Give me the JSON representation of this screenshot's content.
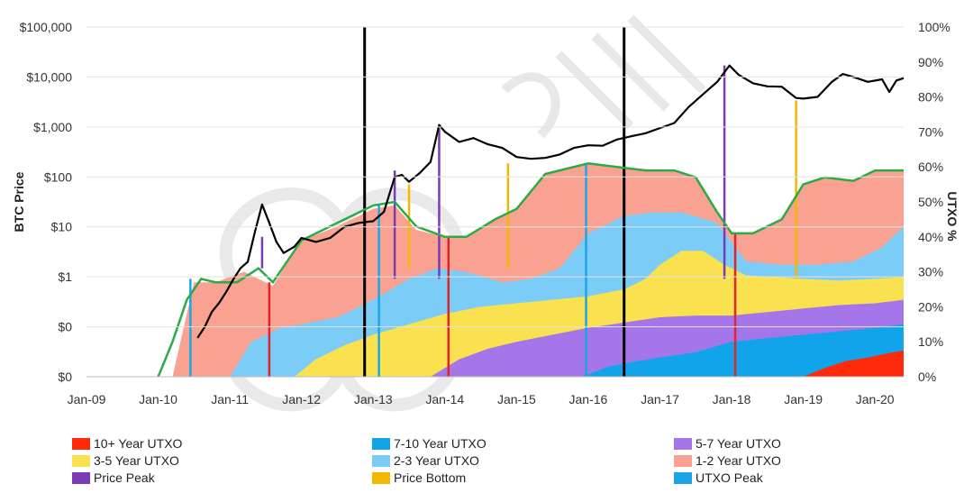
{
  "chart_data": {
    "type": "area",
    "x_ticks": [
      "Jan-09",
      "Jan-10",
      "Jan-11",
      "Jan-12",
      "Jan-13",
      "Jan-14",
      "Jan-15",
      "Jan-16",
      "Jan-17",
      "Jan-18",
      "Jan-19",
      "Jan-20"
    ],
    "x_range": [
      2009.0,
      2020.4
    ],
    "left_axis": {
      "label": "BTC Price",
      "scale": "log",
      "ticks": [
        "$0",
        "$0",
        "$1",
        "$10",
        "$100",
        "$1,000",
        "$10,000",
        "$100,000"
      ]
    },
    "right_axis": {
      "label": "UTXO %",
      "range": [
        0,
        100
      ],
      "ticks": [
        "0%",
        "10%",
        "20%",
        "30%",
        "40%",
        "50%",
        "60%",
        "70%",
        "80%",
        "90%",
        "100%"
      ]
    },
    "colors": {
      "y10p": "#ff2a0a",
      "y7_10": "#12a4ea",
      "y5_7": "#a576ea",
      "y3_5": "#f9e14f",
      "y2_3": "#7cccf8",
      "y1_2": "#f9a291",
      "total_line": "#2bab48",
      "price_line": "#000000",
      "price_peak": "#7a3bb5",
      "price_bottom": "#f5b800",
      "utxo_peak": "#1aa6e6",
      "event_red": "#e0242a"
    },
    "legend": [
      {
        "label": "10+ Year  UTXO",
        "color": "#ff2a0a"
      },
      {
        "label": "7-10 Year  UTXO",
        "color": "#12a4ea"
      },
      {
        "label": "5-7 Year  UTXO",
        "color": "#a576ea"
      },
      {
        "label": "3-5 Year UTXO",
        "color": "#f9e14f"
      },
      {
        "label": "2-3 Year UTXO",
        "color": "#7cccf8"
      },
      {
        "label": "1-2 Year UTXO",
        "color": "#f9a291"
      },
      {
        "label": "Price Peak",
        "color": "#7a3bb5"
      },
      {
        "label": "Price Bottom",
        "color": "#f5b800"
      },
      {
        "label": "UTXO Peak",
        "color": "#1aa6e6"
      }
    ],
    "series": [
      {
        "key": "y10p",
        "name": "10+ Year  UTXO",
        "x": [
          2019.0,
          2019.3,
          2019.6,
          2019.9,
          2020.2,
          2020.4
        ],
        "pct": [
          0,
          2.5,
          4.5,
          5.5,
          6.8,
          7.5
        ]
      },
      {
        "key": "y7_10",
        "name": "7-10 Year  UTXO",
        "x": [
          2015.9,
          2016.3,
          2016.7,
          2017.0,
          2017.5,
          2018.0,
          2018.5,
          2019.0,
          2019.5,
          2020.0,
          2020.4
        ],
        "pct": [
          0,
          3.0,
          4.5,
          5.5,
          7.0,
          10.0,
          11.0,
          12.0,
          13.0,
          14.0,
          15.0
        ]
      },
      {
        "key": "y5_7",
        "name": "5-7 Year  UTXO",
        "x": [
          2013.8,
          2014.2,
          2014.6,
          2015.0,
          2015.5,
          2016.0,
          2016.5,
          2017.0,
          2017.5,
          2018.0,
          2018.5,
          2019.0,
          2019.5,
          2020.0,
          2020.4
        ],
        "pct": [
          0,
          5,
          8,
          10,
          12,
          14,
          15.5,
          17,
          17.5,
          17.5,
          18.5,
          19.5,
          20.5,
          21,
          22
        ]
      },
      {
        "key": "y3_5",
        "name": "3-5 Year UTXO",
        "x": [
          2011.9,
          2012.2,
          2012.6,
          2013.0,
          2013.5,
          2014.0,
          2014.5,
          2015.0,
          2015.5,
          2016.0,
          2016.5,
          2016.8,
          2017.0,
          2017.3,
          2017.6,
          2017.9,
          2018.2,
          2018.6,
          2019.0,
          2019.5,
          2020.0,
          2020.4
        ],
        "pct": [
          0,
          5,
          9,
          12,
          15,
          18,
          20,
          21,
          22,
          23,
          25,
          28,
          32,
          36,
          36,
          32,
          29,
          28.5,
          28,
          27.5,
          28,
          28.5
        ]
      },
      {
        "key": "y2_3",
        "name": "2-3 Year UTXO",
        "x": [
          2011.0,
          2011.3,
          2011.7,
          2012.0,
          2012.5,
          2013.0,
          2013.5,
          2013.9,
          2014.3,
          2014.8,
          2015.2,
          2015.6,
          2016.0,
          2016.5,
          2016.9,
          2017.3,
          2017.8,
          2018.2,
          2018.7,
          2019.2,
          2019.7,
          2020.1,
          2020.4
        ],
        "pct": [
          0,
          10,
          14,
          15,
          17,
          22,
          28,
          31,
          30,
          27,
          28,
          31,
          41,
          46,
          47,
          47,
          44,
          33,
          32,
          32,
          33,
          37,
          43
        ]
      },
      {
        "key": "y1_2",
        "name": "1-2 Year UTXO",
        "x": [
          2010.2,
          2010.5,
          2010.8,
          2011.2,
          2011.6,
          2012.0,
          2012.5,
          2013.0,
          2013.3,
          2013.6,
          2014.0,
          2014.3,
          2014.7,
          2015.0,
          2015.4,
          2015.8,
          2016.0,
          2016.4,
          2016.8,
          2017.2,
          2017.5,
          2017.8,
          2018.0,
          2018.3,
          2018.7,
          2019.0,
          2019.3,
          2019.7,
          2020.0,
          2020.4
        ],
        "pct": [
          0,
          27,
          27,
          30,
          26,
          39,
          43,
          48,
          49,
          42,
          40,
          40,
          45,
          48,
          58,
          60,
          61,
          60,
          59,
          59,
          57,
          47,
          41,
          41,
          45,
          55,
          57,
          56,
          59,
          59
        ]
      },
      {
        "key": "total",
        "name": "",
        "x": [
          2010.0,
          2010.2,
          2010.4,
          2010.6,
          2010.8,
          2011.1,
          2011.4,
          2011.6,
          2012.0,
          2012.5,
          2013.0,
          2013.3,
          2013.6,
          2014.0,
          2014.3,
          2014.7,
          2015.0,
          2015.4,
          2015.8,
          2016.0,
          2016.4,
          2016.8,
          2017.2,
          2017.5,
          2017.8,
          2018.0,
          2018.3,
          2018.7,
          2019.0,
          2019.3,
          2019.7,
          2020.0,
          2020.4
        ],
        "pct": [
          0,
          10,
          22,
          28,
          27,
          27,
          31,
          27,
          39,
          44,
          49,
          50,
          43,
          40,
          40,
          45,
          48,
          58,
          60,
          61,
          60,
          59,
          59,
          57,
          47,
          41,
          41,
          45,
          55,
          57,
          56,
          59,
          59
        ]
      }
    ],
    "price": {
      "name": "",
      "x": [
        2010.55,
        2010.65,
        2010.75,
        2010.85,
        2010.95,
        2011.05,
        2011.15,
        2011.25,
        2011.35,
        2011.45,
        2011.55,
        2011.65,
        2011.75,
        2011.9,
        2012.0,
        2012.2,
        2012.4,
        2012.6,
        2012.8,
        2013.0,
        2013.15,
        2013.3,
        2013.4,
        2013.5,
        2013.65,
        2013.8,
        2013.92,
        2014.0,
        2014.2,
        2014.4,
        2014.6,
        2014.8,
        2015.0,
        2015.2,
        2015.4,
        2015.6,
        2015.8,
        2016.0,
        2016.2,
        2016.4,
        2016.6,
        2016.8,
        2017.0,
        2017.2,
        2017.4,
        2017.6,
        2017.8,
        2017.97,
        2018.1,
        2018.3,
        2018.5,
        2018.7,
        2018.9,
        2019.0,
        2019.2,
        2019.4,
        2019.55,
        2019.7,
        2019.9,
        2020.1,
        2020.2,
        2020.3,
        2020.4
      ],
      "y": [
        0.06,
        0.1,
        0.2,
        0.3,
        0.5,
        0.9,
        1.5,
        2.0,
        8,
        28,
        12,
        5,
        3,
        4,
        6,
        5,
        6,
        10,
        12,
        13,
        20,
        100,
        110,
        80,
        120,
        200,
        1100,
        800,
        500,
        600,
        450,
        380,
        250,
        230,
        240,
        280,
        380,
        430,
        420,
        560,
        650,
        750,
        950,
        1200,
        2500,
        4500,
        8000,
        17000,
        11000,
        7500,
        6500,
        6400,
        3800,
        3700,
        4000,
        8000,
        11500,
        10000,
        8000,
        9000,
        5000,
        8500,
        9500
      ]
    },
    "vertical_markers": [
      {
        "kind": "utxo_peak",
        "x": 2010.45,
        "pct_top": 28,
        "pct_bottom": 0
      },
      {
        "kind": "event_red",
        "x": 2011.55,
        "pct_top": 27,
        "pct_bottom": 0
      },
      {
        "kind": "price_peak",
        "x": 2011.45,
        "pct_top": 40,
        "pct_bottom": 31
      },
      {
        "kind": "event_black",
        "x": 2012.88,
        "pct_top": 100,
        "pct_bottom": 0
      },
      {
        "kind": "utxo_peak",
        "x": 2013.08,
        "pct_top": 49,
        "pct_bottom": 0
      },
      {
        "kind": "price_peak",
        "x": 2013.3,
        "pct_top": 59,
        "pct_bottom": 28
      },
      {
        "kind": "price_bottom",
        "x": 2013.5,
        "pct_top": 55,
        "pct_bottom": 31
      },
      {
        "kind": "price_peak",
        "x": 2013.92,
        "pct_top": 71,
        "pct_bottom": 28
      },
      {
        "kind": "event_red",
        "x": 2014.05,
        "pct_top": 40,
        "pct_bottom": 0
      },
      {
        "kind": "price_bottom",
        "x": 2014.88,
        "pct_top": 61,
        "pct_bottom": 31
      },
      {
        "kind": "utxo_peak",
        "x": 2015.97,
        "pct_top": 61,
        "pct_bottom": 0
      },
      {
        "kind": "event_black",
        "x": 2016.5,
        "pct_top": 100,
        "pct_bottom": 0
      },
      {
        "kind": "price_peak",
        "x": 2017.9,
        "pct_top": 89,
        "pct_bottom": 28
      },
      {
        "kind": "event_red",
        "x": 2018.05,
        "pct_top": 41,
        "pct_bottom": 0
      },
      {
        "kind": "price_bottom",
        "x": 2018.9,
        "pct_top": 79,
        "pct_bottom": 28
      }
    ]
  }
}
